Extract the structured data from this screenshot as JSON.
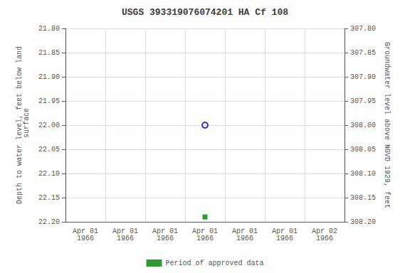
{
  "chart_data": {
    "type": "scatter",
    "title": "USGS 393319076074201 HA Cf 108",
    "y_label": "Depth to water level, feet below land\n surface",
    "y2_label": "Groundwater level above NGVD 1929, feet",
    "categories": [
      "Apr 01\n1966",
      "Apr 01\n1966",
      "Apr 01\n1966",
      "Apr 01\n1966",
      "Apr 01\n1966",
      "Apr 01\n1966",
      "Apr 02\n1966"
    ],
    "series": [
      {
        "color": "#0000bb",
        "marker": "open_circle",
        "values": [
          null,
          null,
          null,
          22.0,
          null,
          null,
          null
        ]
      },
      {
        "name": "Period of approved data",
        "color": "#008000",
        "marker": "square",
        "values": [
          null,
          null,
          null,
          22.19,
          null,
          null,
          null
        ]
      }
    ],
    "ylim": [
      22.2,
      21.8
    ],
    "yticks": [
      {
        "value": 21.8,
        "label": "21.80"
      },
      {
        "value": 21.85,
        "label": "21.85"
      },
      {
        "value": 21.9,
        "label": "21.90"
      },
      {
        "value": 21.95,
        "label": "21.95"
      },
      {
        "value": 22.0,
        "label": "22.00"
      },
      {
        "value": 22.05,
        "label": "22.05"
      },
      {
        "value": 22.1,
        "label": "22.10"
      },
      {
        "value": 22.15,
        "label": "22.15"
      },
      {
        "value": 22.2,
        "label": "22.20"
      }
    ],
    "y2lim": [
      308.2,
      307.8
    ],
    "y2ticks": [
      {
        "value": 307.8,
        "label": "307.80"
      },
      {
        "value": 307.85,
        "label": "307.85"
      },
      {
        "value": 307.9,
        "label": "307.90"
      },
      {
        "value": 307.95,
        "label": "307.95"
      },
      {
        "value": 308.0,
        "label": "308.00"
      },
      {
        "value": 308.05,
        "label": "308.05"
      },
      {
        "value": 308.1,
        "label": "308.10"
      },
      {
        "value": 308.15,
        "label": "308.15"
      },
      {
        "value": 308.2,
        "label": "308.20"
      }
    ],
    "grid": true,
    "legend": "bottom"
  }
}
